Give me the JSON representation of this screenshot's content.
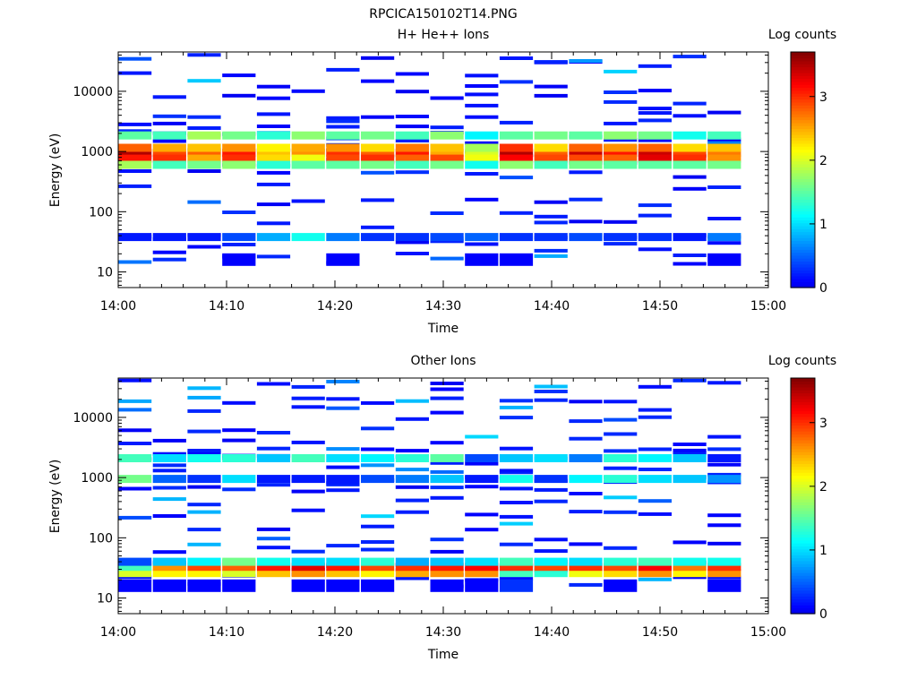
{
  "figure_title": "RPCICA150102T14.PNG",
  "colorbar_title": "Log counts",
  "colorbar_ticks": [
    "0",
    "1",
    "2",
    "3"
  ],
  "colorbar_range": [
    0,
    3.7
  ],
  "x_ticks": [
    "14:00",
    "14:10",
    "14:20",
    "14:30",
    "14:40",
    "14:50",
    "15:00"
  ],
  "y_ticks": [
    "10",
    "100",
    "1000",
    "10000"
  ],
  "chart_data": [
    {
      "type": "heatmap",
      "title": "H+ He++ Ions",
      "xlabel": "Time",
      "ylabel": "Energy (eV)",
      "yscale": "log",
      "xlim": [
        "14:00",
        "15:00"
      ],
      "ylim": [
        5.5,
        45000
      ],
      "grid": false,
      "time_bins": 18,
      "time_bin_minutes": 3.2,
      "band_centers_eV": [
        16,
        22,
        30,
        38,
        60,
        85,
        150,
        250,
        420,
        600,
        760,
        950,
        1150,
        1450,
        1850,
        2300,
        3000,
        4200,
        6000,
        9000,
        13000,
        20000,
        28000,
        36000
      ],
      "bands": [
        {
          "center_eV": 950,
          "log_counts": [
            3.5,
            2.9,
            2.8,
            3.1,
            2.4,
            2.6,
            3.0,
            2.8,
            3.1,
            2.5,
            2.0,
            3.5,
            2.8,
            3.4,
            3.1,
            3.4,
            2.9,
            2.7
          ]
        },
        {
          "center_eV": 760,
          "log_counts": [
            3.1,
            3.0,
            2.5,
            3.0,
            2.3,
            2.1,
            2.9,
            3.0,
            2.8,
            2.9,
            2.1,
            3.2,
            2.9,
            2.9,
            2.8,
            3.3,
            3.0,
            2.6
          ]
        },
        {
          "center_eV": 1150,
          "log_counts": [
            2.8,
            2.5,
            2.4,
            2.6,
            2.2,
            2.5,
            2.6,
            2.3,
            2.7,
            2.4,
            1.8,
            3.0,
            2.3,
            2.8,
            2.6,
            2.8,
            2.3,
            2.4
          ]
        },
        {
          "center_eV": 600,
          "log_counts": [
            1.8,
            1.4,
            1.6,
            1.7,
            1.3,
            1.5,
            1.5,
            1.6,
            1.4,
            1.6,
            1.2,
            1.7,
            1.4,
            1.6,
            1.5,
            1.5,
            1.5,
            1.6
          ]
        },
        {
          "center_eV": 1850,
          "log_counts": [
            1.5,
            1.4,
            1.8,
            1.6,
            1.3,
            1.7,
            1.5,
            1.6,
            1.4,
            1.7,
            1.1,
            1.5,
            1.6,
            1.5,
            1.7,
            1.6,
            1.2,
            1.4
          ]
        },
        {
          "center_eV": 38,
          "log_counts": [
            0.2,
            0.2,
            0.2,
            0.4,
            0.8,
            1.2,
            0.6,
            0.3,
            0.3,
            0.4,
            0.5,
            0.3,
            0.3,
            0.4,
            0.3,
            0.3,
            0.2,
            0.6
          ]
        },
        {
          "center_eV": 16,
          "log_counts": [
            null,
            null,
            null,
            0.1,
            null,
            null,
            0.1,
            null,
            null,
            null,
            0.1,
            0.1,
            null,
            null,
            null,
            null,
            null,
            0.1
          ]
        }
      ]
    },
    {
      "type": "heatmap",
      "title": "Other Ions",
      "xlabel": "Time",
      "ylabel": "Energy (eV)",
      "yscale": "log",
      "xlim": [
        "14:00",
        "15:00"
      ],
      "ylim": [
        5.5,
        45000
      ],
      "grid": false,
      "time_bins": 18,
      "time_bin_minutes": 3.2,
      "bands": [
        {
          "center_eV": 26,
          "log_counts": [
            2.0,
            2.2,
            2.2,
            2.0,
            2.4,
            2.6,
            2.4,
            2.2,
            2.5,
            2.6,
            2.6,
            1.4,
            1.3,
            2.1,
            2.3,
            2.6,
            2.2,
            2.6
          ]
        },
        {
          "center_eV": 33,
          "log_counts": [
            1.4,
            2.6,
            2.9,
            2.8,
            3.1,
            3.3,
            3.1,
            2.9,
            3.0,
            3.1,
            3.2,
            3.0,
            2.9,
            3.0,
            2.9,
            3.2,
            2.7,
            3.0
          ]
        },
        {
          "center_eV": 40,
          "log_counts": [
            0.4,
            0.9,
            1.1,
            1.6,
            1.2,
            1.0,
            1.0,
            1.3,
            0.8,
            0.9,
            1.0,
            1.4,
            1.1,
            1.0,
            1.3,
            1.4,
            1.2,
            1.2
          ]
        },
        {
          "center_eV": 2100,
          "log_counts": [
            1.4,
            1.0,
            1.2,
            1.3,
            0.9,
            1.4,
            1.0,
            1.1,
            1.3,
            1.5,
            0.4,
            0.9,
            1.0,
            0.6,
            1.3,
            1.1,
            0.9,
            0.2
          ]
        },
        {
          "center_eV": 950,
          "log_counts": [
            1.6,
            0.5,
            0.3,
            1.0,
            0.2,
            0.2,
            0.2,
            0.4,
            0.6,
            0.9,
            0.2,
            1.2,
            0.3,
            1.1,
            1.3,
            1.0,
            0.9,
            0.7
          ]
        },
        {
          "center_eV": 16,
          "log_counts": [
            0.1,
            0.1,
            0.1,
            0.1,
            null,
            0.1,
            0.1,
            0.1,
            null,
            0.1,
            0.1,
            0.3,
            null,
            null,
            0.1,
            null,
            null,
            0.1
          ]
        }
      ]
    }
  ]
}
